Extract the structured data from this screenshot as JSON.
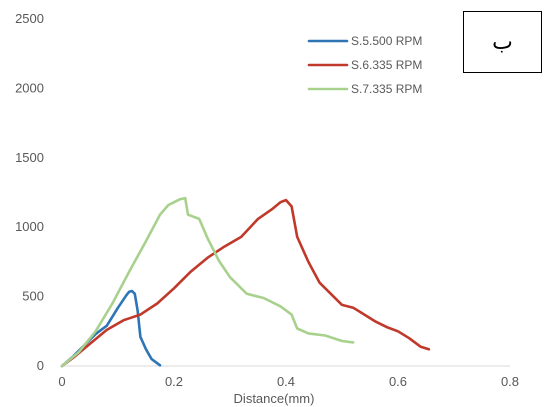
{
  "chart_data": {
    "type": "line",
    "title": "",
    "xlabel": "Distance(mm)",
    "ylabel": "",
    "xlim": [
      0,
      0.8
    ],
    "ylim": [
      0,
      2500
    ],
    "xticks": [
      "0",
      "0.2",
      "0.4",
      "0.6",
      "0.8"
    ],
    "xtick_values": [
      0,
      0.2,
      0.4,
      0.6,
      0.8
    ],
    "yticks": [
      "0",
      "500",
      "1000",
      "1500",
      "2000",
      "2500"
    ],
    "ytick_values": [
      0,
      500,
      1000,
      1500,
      2000,
      2500
    ],
    "grid": false,
    "legend_position": "top-right",
    "annotation": "ب",
    "series": [
      {
        "name": "S.5.500 RPM",
        "color": "#2e75b6",
        "points": [
          [
            0,
            0
          ],
          [
            0.02,
            70
          ],
          [
            0.04,
            150
          ],
          [
            0.06,
            230
          ],
          [
            0.08,
            290
          ],
          [
            0.1,
            420
          ],
          [
            0.115,
            510
          ],
          [
            0.12,
            535
          ],
          [
            0.125,
            540
          ],
          [
            0.13,
            520
          ],
          [
            0.135,
            400
          ],
          [
            0.14,
            210
          ],
          [
            0.15,
            120
          ],
          [
            0.16,
            50
          ],
          [
            0.175,
            5
          ]
        ]
      },
      {
        "name": "S.6.335 RPM",
        "color": "#c0392b",
        "points": [
          [
            0,
            0
          ],
          [
            0.02,
            60
          ],
          [
            0.05,
            160
          ],
          [
            0.08,
            260
          ],
          [
            0.11,
            330
          ],
          [
            0.14,
            370
          ],
          [
            0.17,
            450
          ],
          [
            0.2,
            560
          ],
          [
            0.23,
            680
          ],
          [
            0.26,
            780
          ],
          [
            0.29,
            860
          ],
          [
            0.32,
            930
          ],
          [
            0.35,
            1060
          ],
          [
            0.375,
            1130
          ],
          [
            0.39,
            1180
          ],
          [
            0.4,
            1195
          ],
          [
            0.41,
            1150
          ],
          [
            0.42,
            930
          ],
          [
            0.44,
            750
          ],
          [
            0.46,
            600
          ],
          [
            0.48,
            520
          ],
          [
            0.5,
            440
          ],
          [
            0.52,
            420
          ],
          [
            0.54,
            370
          ],
          [
            0.56,
            320
          ],
          [
            0.58,
            280
          ],
          [
            0.6,
            250
          ],
          [
            0.62,
            200
          ],
          [
            0.64,
            140
          ],
          [
            0.655,
            120
          ]
        ]
      },
      {
        "name": "S.7.335 RPM",
        "color": "#a9d18e",
        "points": [
          [
            0,
            0
          ],
          [
            0.03,
            100
          ],
          [
            0.06,
            250
          ],
          [
            0.09,
            450
          ],
          [
            0.12,
            680
          ],
          [
            0.15,
            900
          ],
          [
            0.175,
            1090
          ],
          [
            0.19,
            1160
          ],
          [
            0.21,
            1200
          ],
          [
            0.22,
            1210
          ],
          [
            0.225,
            1090
          ],
          [
            0.245,
            1060
          ],
          [
            0.26,
            920
          ],
          [
            0.28,
            760
          ],
          [
            0.3,
            640
          ],
          [
            0.33,
            520
          ],
          [
            0.36,
            490
          ],
          [
            0.39,
            430
          ],
          [
            0.41,
            370
          ],
          [
            0.42,
            270
          ],
          [
            0.44,
            235
          ],
          [
            0.47,
            220
          ],
          [
            0.5,
            180
          ],
          [
            0.52,
            170
          ]
        ]
      }
    ]
  }
}
